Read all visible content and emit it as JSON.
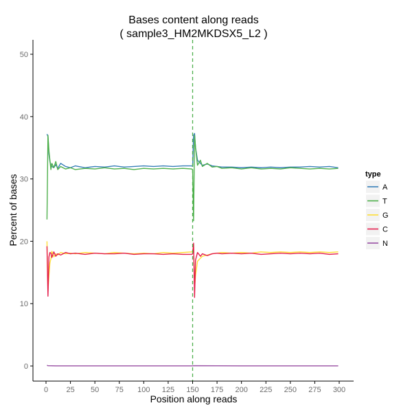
{
  "chart_data": {
    "type": "line",
    "title": "Bases content along reads",
    "subtitle": "( sample3_HM2MKDSX5_L2 )",
    "xlabel": "Position along reads",
    "ylabel": "Percent of bases",
    "xlim": [
      0,
      300
    ],
    "ylim": [
      0,
      50
    ],
    "x_ticks": [
      0,
      25,
      50,
      75,
      100,
      125,
      150,
      175,
      200,
      225,
      250,
      275,
      300
    ],
    "y_ticks": [
      0,
      10,
      20,
      30,
      40,
      50
    ],
    "grid": false,
    "legend": {
      "title": "type",
      "position": "right"
    },
    "vline": {
      "x": 150,
      "color": "#4daf4a",
      "style": "dashed"
    },
    "series": [
      {
        "name": "A",
        "color": "#377eb8",
        "points": [
          [
            1,
            37.2
          ],
          [
            2,
            36.8
          ],
          [
            3,
            34.0
          ],
          [
            4,
            32.8
          ],
          [
            5,
            32.2
          ],
          [
            6,
            32.0
          ],
          [
            8,
            31.8
          ],
          [
            10,
            32.3
          ],
          [
            12,
            31.7
          ],
          [
            15,
            32.5
          ],
          [
            20,
            32.0
          ],
          [
            25,
            31.8
          ],
          [
            30,
            32.1
          ],
          [
            40,
            31.8
          ],
          [
            50,
            32.0
          ],
          [
            60,
            31.9
          ],
          [
            70,
            32.1
          ],
          [
            80,
            31.9
          ],
          [
            90,
            32.0
          ],
          [
            100,
            32.1
          ],
          [
            110,
            32.0
          ],
          [
            120,
            32.1
          ],
          [
            130,
            32.0
          ],
          [
            140,
            32.1
          ],
          [
            149,
            32.1
          ],
          [
            150,
            32.0
          ],
          [
            151,
            37.0
          ],
          [
            152,
            37.3
          ],
          [
            153,
            35.0
          ],
          [
            155,
            33.0
          ],
          [
            158,
            32.5
          ],
          [
            160,
            32.2
          ],
          [
            165,
            32.4
          ],
          [
            170,
            32.1
          ],
          [
            175,
            32.0
          ],
          [
            180,
            31.9
          ],
          [
            190,
            31.9
          ],
          [
            200,
            31.8
          ],
          [
            210,
            31.9
          ],
          [
            220,
            31.8
          ],
          [
            230,
            31.9
          ],
          [
            240,
            31.8
          ],
          [
            250,
            31.9
          ],
          [
            260,
            31.9
          ],
          [
            270,
            32.0
          ],
          [
            280,
            31.9
          ],
          [
            290,
            32.0
          ],
          [
            299,
            31.8
          ]
        ]
      },
      {
        "name": "T",
        "color": "#4daf4a",
        "points": [
          [
            1,
            23.5
          ],
          [
            2,
            37.0
          ],
          [
            3,
            34.5
          ],
          [
            4,
            33.0
          ],
          [
            5,
            31.5
          ],
          [
            6,
            32.5
          ],
          [
            8,
            31.8
          ],
          [
            10,
            32.8
          ],
          [
            12,
            31.5
          ],
          [
            15,
            32.0
          ],
          [
            20,
            31.6
          ],
          [
            25,
            31.8
          ],
          [
            30,
            31.5
          ],
          [
            40,
            31.7
          ],
          [
            50,
            31.6
          ],
          [
            60,
            31.8
          ],
          [
            70,
            31.6
          ],
          [
            80,
            31.7
          ],
          [
            90,
            31.5
          ],
          [
            100,
            31.7
          ],
          [
            110,
            31.6
          ],
          [
            120,
            31.7
          ],
          [
            130,
            31.6
          ],
          [
            140,
            31.7
          ],
          [
            149,
            31.6
          ],
          [
            150,
            31.5
          ],
          [
            151,
            23.3
          ],
          [
            152,
            37.0
          ],
          [
            153,
            35.0
          ],
          [
            155,
            32.2
          ],
          [
            158,
            33.0
          ],
          [
            160,
            32.0
          ],
          [
            165,
            32.5
          ],
          [
            170,
            31.9
          ],
          [
            175,
            32.0
          ],
          [
            180,
            31.7
          ],
          [
            190,
            31.8
          ],
          [
            200,
            31.6
          ],
          [
            210,
            31.8
          ],
          [
            220,
            31.6
          ],
          [
            230,
            31.7
          ],
          [
            240,
            31.6
          ],
          [
            250,
            31.8
          ],
          [
            260,
            31.7
          ],
          [
            270,
            31.6
          ],
          [
            280,
            31.7
          ],
          [
            290,
            31.6
          ],
          [
            299,
            31.7
          ]
        ]
      },
      {
        "name": "G",
        "color": "#ffdd33",
        "points": [
          [
            1,
            20.0
          ],
          [
            2,
            12.0
          ],
          [
            3,
            14.5
          ],
          [
            4,
            16.5
          ],
          [
            5,
            17.2
          ],
          [
            6,
            18.4
          ],
          [
            8,
            17.5
          ],
          [
            10,
            18.0
          ],
          [
            12,
            17.8
          ],
          [
            15,
            18.2
          ],
          [
            20,
            18.0
          ],
          [
            25,
            18.1
          ],
          [
            30,
            18.0
          ],
          [
            40,
            18.2
          ],
          [
            50,
            18.1
          ],
          [
            60,
            18.0
          ],
          [
            70,
            18.2
          ],
          [
            80,
            18.1
          ],
          [
            90,
            18.0
          ],
          [
            100,
            18.1
          ],
          [
            110,
            18.0
          ],
          [
            120,
            18.2
          ],
          [
            130,
            18.1
          ],
          [
            140,
            18.2
          ],
          [
            149,
            18.3
          ],
          [
            150,
            18.4
          ],
          [
            151,
            19.2
          ],
          [
            152,
            12.5
          ],
          [
            153,
            14.5
          ],
          [
            155,
            16.8
          ],
          [
            158,
            17.3
          ],
          [
            160,
            17.6
          ],
          [
            165,
            17.8
          ],
          [
            170,
            18.0
          ],
          [
            175,
            18.1
          ],
          [
            180,
            18.2
          ],
          [
            190,
            18.1
          ],
          [
            200,
            18.2
          ],
          [
            210,
            18.1
          ],
          [
            220,
            18.3
          ],
          [
            230,
            18.2
          ],
          [
            240,
            18.3
          ],
          [
            250,
            18.2
          ],
          [
            260,
            18.3
          ],
          [
            270,
            18.2
          ],
          [
            280,
            18.3
          ],
          [
            290,
            18.2
          ],
          [
            299,
            18.3
          ]
        ]
      },
      {
        "name": "C",
        "color": "#e41a4a",
        "points": [
          [
            1,
            19.2
          ],
          [
            2,
            11.2
          ],
          [
            3,
            17.5
          ],
          [
            4,
            18.2
          ],
          [
            5,
            18.1
          ],
          [
            6,
            17.4
          ],
          [
            8,
            18.3
          ],
          [
            10,
            17.6
          ],
          [
            12,
            18.0
          ],
          [
            15,
            17.8
          ],
          [
            20,
            18.2
          ],
          [
            25,
            18.0
          ],
          [
            30,
            18.1
          ],
          [
            40,
            17.9
          ],
          [
            50,
            18.1
          ],
          [
            60,
            18.0
          ],
          [
            70,
            18.0
          ],
          [
            80,
            18.1
          ],
          [
            90,
            17.9
          ],
          [
            100,
            18.0
          ],
          [
            110,
            18.0
          ],
          [
            120,
            17.9
          ],
          [
            130,
            18.0
          ],
          [
            140,
            17.9
          ],
          [
            149,
            17.9
          ],
          [
            150,
            18.0
          ],
          [
            151,
            19.7
          ],
          [
            152,
            11.0
          ],
          [
            153,
            17.0
          ],
          [
            155,
            18.2
          ],
          [
            158,
            17.6
          ],
          [
            160,
            18.0
          ],
          [
            165,
            17.7
          ],
          [
            170,
            18.0
          ],
          [
            175,
            18.1
          ],
          [
            180,
            18.0
          ],
          [
            190,
            18.1
          ],
          [
            200,
            18.0
          ],
          [
            210,
            18.1
          ],
          [
            220,
            17.9
          ],
          [
            230,
            18.0
          ],
          [
            240,
            18.1
          ],
          [
            250,
            18.0
          ],
          [
            260,
            18.1
          ],
          [
            270,
            18.0
          ],
          [
            280,
            18.1
          ],
          [
            290,
            17.9
          ],
          [
            299,
            18.0
          ]
        ]
      },
      {
        "name": "N",
        "color": "#984ea3",
        "points": [
          [
            1,
            0.1
          ],
          [
            2,
            0.05
          ],
          [
            10,
            0.02
          ],
          [
            50,
            0.02
          ],
          [
            100,
            0.02
          ],
          [
            150,
            0.02
          ],
          [
            151,
            0.05
          ],
          [
            200,
            0.02
          ],
          [
            250,
            0.02
          ],
          [
            299,
            0.02
          ]
        ]
      }
    ]
  }
}
